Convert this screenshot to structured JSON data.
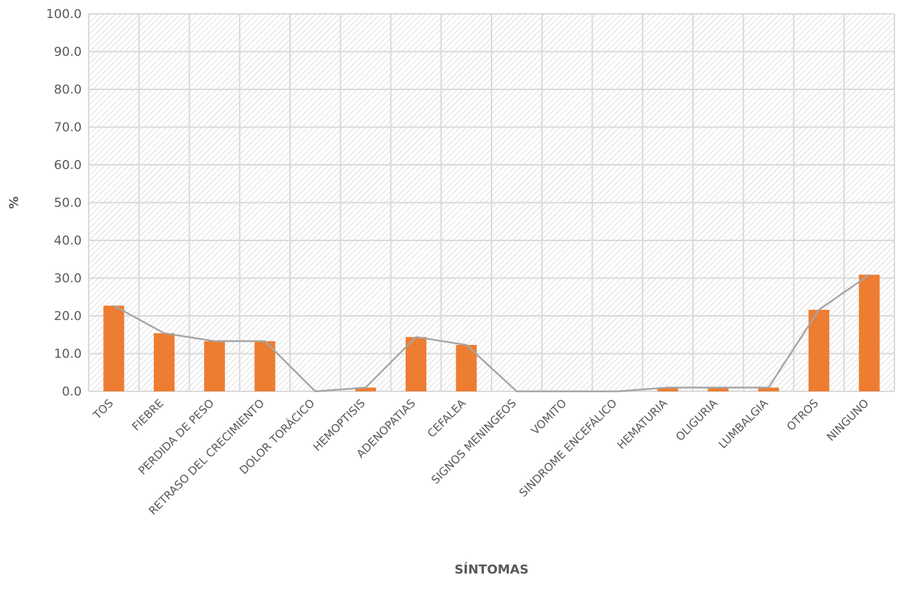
{
  "chart_data": {
    "type": "bar",
    "title": "",
    "xlabel": "SÍNTOMAS",
    "ylabel": "%",
    "ylim": [
      0,
      100
    ],
    "yticks": [
      "0.0",
      "10.0",
      "20.0",
      "30.0",
      "40.0",
      "50.0",
      "60.0",
      "70.0",
      "80.0",
      "90.0",
      "100.0"
    ],
    "grid": true,
    "legend": "none",
    "categories": [
      "TOS",
      "FIEBRE",
      "PERDIDA DE PESO",
      "RETRASO DEL CRECIMIENTO",
      "DOLOR TORÁCICO",
      "HEMOPTISIS",
      "ADENOPATIAS",
      "CEFALEA",
      "SIGNOS MENINGEOS",
      "VOMITO",
      "SINDROME ENCEFÁLICO",
      "HEMATURIA",
      "OLIGURIA",
      "LUMBALGIA",
      "OTROS",
      "NINGUNO"
    ],
    "series": [
      {
        "type": "bar",
        "color": "#ED7D31",
        "values": [
          22.7,
          15.4,
          13.3,
          13.3,
          0.0,
          1.0,
          14.4,
          12.3,
          0.0,
          0.0,
          0.0,
          1.0,
          1.0,
          1.0,
          21.6,
          30.9
        ]
      },
      {
        "type": "line",
        "color": "#A5A5A5",
        "values": [
          22.7,
          15.4,
          13.3,
          13.3,
          0.0,
          1.0,
          14.4,
          12.3,
          0.0,
          0.0,
          0.0,
          1.0,
          1.0,
          1.0,
          21.6,
          30.9
        ]
      }
    ],
    "colors": {
      "gridline": "#D9D9D9",
      "hatch": "#C8C8C8",
      "text": "#595959"
    }
  }
}
